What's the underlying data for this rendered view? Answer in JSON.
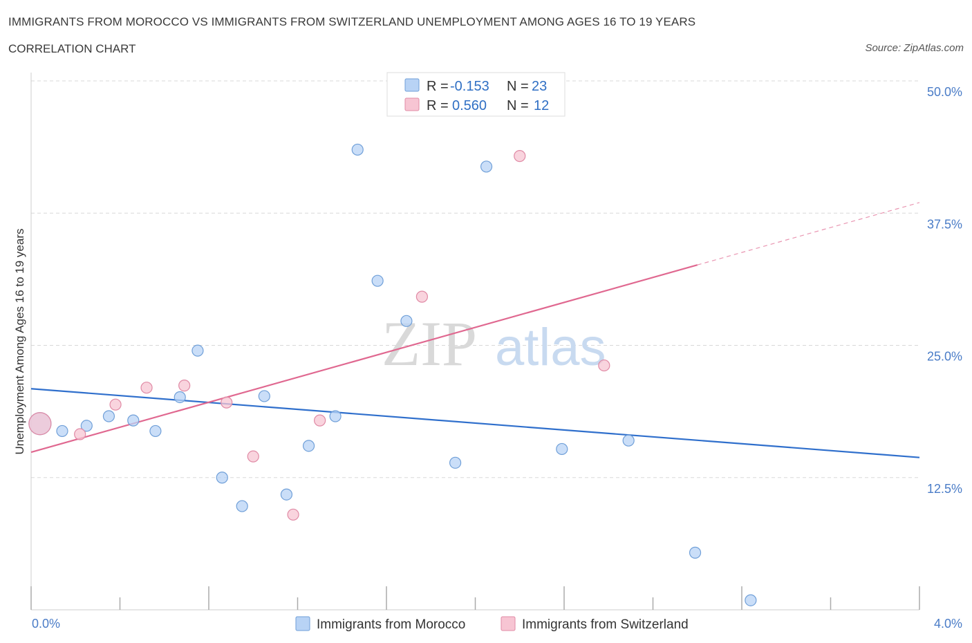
{
  "header": {
    "title": "IMMIGRANTS FROM MOROCCO VS IMMIGRANTS FROM SWITZERLAND UNEMPLOYMENT AMONG AGES 16 TO 19 YEARS",
    "subtitle": "CORRELATION CHART",
    "source": "Source: ZipAtlas.com"
  },
  "watermark": {
    "zip": "ZIP",
    "atlas": "atlas"
  },
  "legend": {
    "r_label": "R =",
    "n_label": "N =",
    "rows": [
      {
        "r": "-0.153",
        "n": "23",
        "color": "#b8d3f5"
      },
      {
        "r": "0.560",
        "n": "12",
        "color": "#f7c5d3"
      }
    ]
  },
  "chart_data": {
    "type": "scatter",
    "title": "IMMIGRANTS FROM MOROCCO VS IMMIGRANTS FROM SWITZERLAND UNEMPLOYMENT AMONG AGES 16 TO 19 YEARS",
    "xlabel": "",
    "ylabel": "Unemployment Among Ages 16 to 19 years",
    "xlim": [
      0,
      4.0
    ],
    "ylim": [
      0,
      50
    ],
    "x_tick_labels": [
      "0.0%",
      "4.0%"
    ],
    "y_ticks": [
      12.5,
      25.0,
      37.5,
      50.0
    ],
    "y_tick_labels": [
      "12.5%",
      "25.0%",
      "37.5%",
      "50.0%"
    ],
    "grid": true,
    "series": [
      {
        "name": "Immigrants from Morocco",
        "color": "#b8d3f5",
        "stroke": "#6f9fd8",
        "line_color": "#2f6fcc",
        "trend": [
          [
            0,
            20.9
          ],
          [
            4.0,
            14.4
          ]
        ],
        "points": [
          [
            0.04,
            17.6
          ],
          [
            0.14,
            16.9
          ],
          [
            0.25,
            17.4
          ],
          [
            0.35,
            18.3
          ],
          [
            0.46,
            17.9
          ],
          [
            0.56,
            16.9
          ],
          [
            0.67,
            20.1
          ],
          [
            0.75,
            24.5
          ],
          [
            0.86,
            12.5
          ],
          [
            0.95,
            9.8
          ],
          [
            1.05,
            20.2
          ],
          [
            1.15,
            10.9
          ],
          [
            1.25,
            15.5
          ],
          [
            1.37,
            18.3
          ],
          [
            1.47,
            43.5
          ],
          [
            1.56,
            31.1
          ],
          [
            1.69,
            27.3
          ],
          [
            1.91,
            13.9
          ],
          [
            2.05,
            41.9
          ],
          [
            2.39,
            15.2
          ],
          [
            2.69,
            16.0
          ],
          [
            2.99,
            5.4
          ],
          [
            3.24,
            0.9
          ]
        ]
      },
      {
        "name": "Immigrants from Switzerland",
        "color": "#f7c5d3",
        "stroke": "#e08aa5",
        "line_color": "#e06890",
        "trend": [
          [
            0,
            14.9
          ],
          [
            3.0,
            32.6
          ]
        ],
        "trend_dashed": [
          [
            3.0,
            32.6
          ],
          [
            4.0,
            38.5
          ]
        ],
        "points": [
          [
            0.04,
            17.6
          ],
          [
            0.22,
            16.6
          ],
          [
            0.38,
            19.4
          ],
          [
            0.52,
            21.0
          ],
          [
            0.69,
            21.2
          ],
          [
            0.88,
            19.6
          ],
          [
            1.0,
            14.5
          ],
          [
            1.18,
            9.0
          ],
          [
            1.3,
            17.9
          ],
          [
            1.76,
            29.6
          ],
          [
            2.2,
            42.9
          ],
          [
            2.58,
            23.1
          ]
        ]
      }
    ]
  },
  "bottom_legend": [
    {
      "label": "Immigrants from Morocco",
      "color": "#b8d3f5",
      "stroke": "#6f9fd8"
    },
    {
      "label": "Immigrants from Switzerland",
      "color": "#f7c5d3",
      "stroke": "#e08aa5"
    }
  ]
}
